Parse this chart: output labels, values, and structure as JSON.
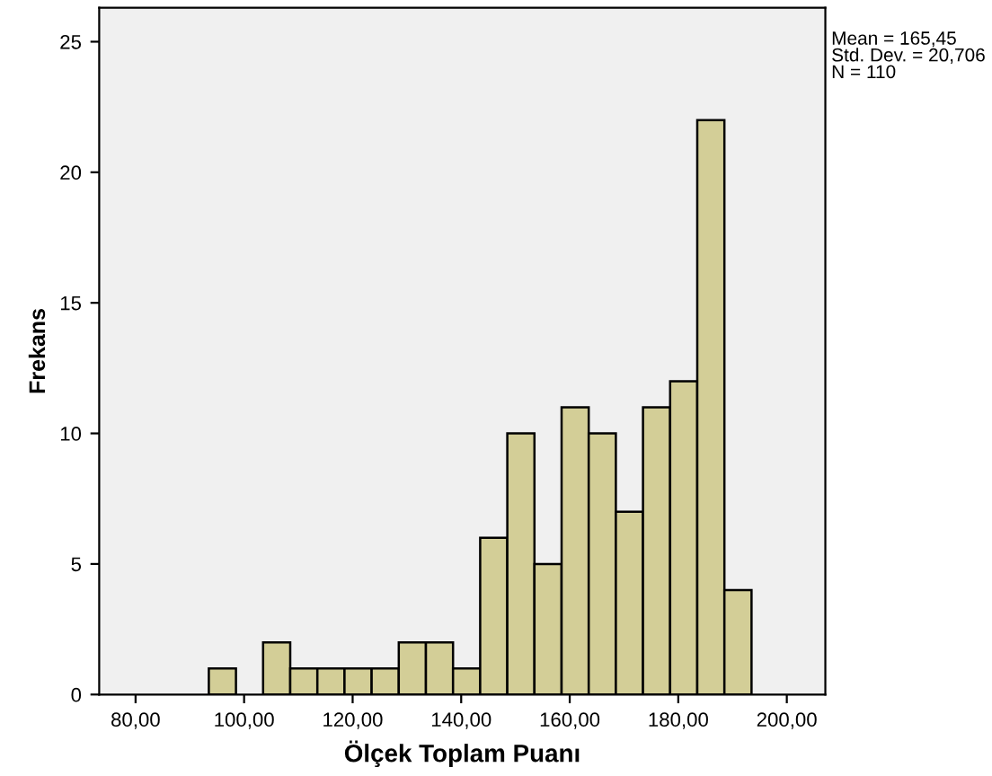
{
  "chart_data": {
    "type": "histogram",
    "xlabel": "Ölçek Toplam Puanı",
    "ylabel": "Frekans",
    "bins": [
      93.5,
      98.5,
      103.5,
      108.5,
      113.5,
      118.5,
      123.5,
      128.5,
      133.5,
      138.5,
      143.5,
      148.5,
      153.5,
      158.5,
      163.5,
      168.5,
      173.5,
      178.5,
      183.5,
      188.5,
      193.5
    ],
    "values": [
      1,
      0,
      2,
      1,
      1,
      1,
      1,
      2,
      2,
      1,
      6,
      10,
      5,
      11,
      10,
      7,
      11,
      12,
      22,
      4
    ],
    "color": "#d3ce97",
    "xlim": [
      73.3,
      207.1
    ],
    "ylim": [
      0,
      26.3
    ],
    "xticks": [
      {
        "value": 80,
        "label": "80,00"
      },
      {
        "value": 100,
        "label": "100,00"
      },
      {
        "value": 120,
        "label": "120,00"
      },
      {
        "value": 140,
        "label": "140,00"
      },
      {
        "value": 160,
        "label": "160,00"
      },
      {
        "value": 180,
        "label": "180,00"
      },
      {
        "value": 200,
        "label": "200,00"
      }
    ],
    "yticks": [
      0,
      5,
      10,
      15,
      20,
      25
    ],
    "grid": false,
    "annotations": [
      "Mean = 165,45\nStd. Dev. = 20,706\nN = 110"
    ]
  }
}
